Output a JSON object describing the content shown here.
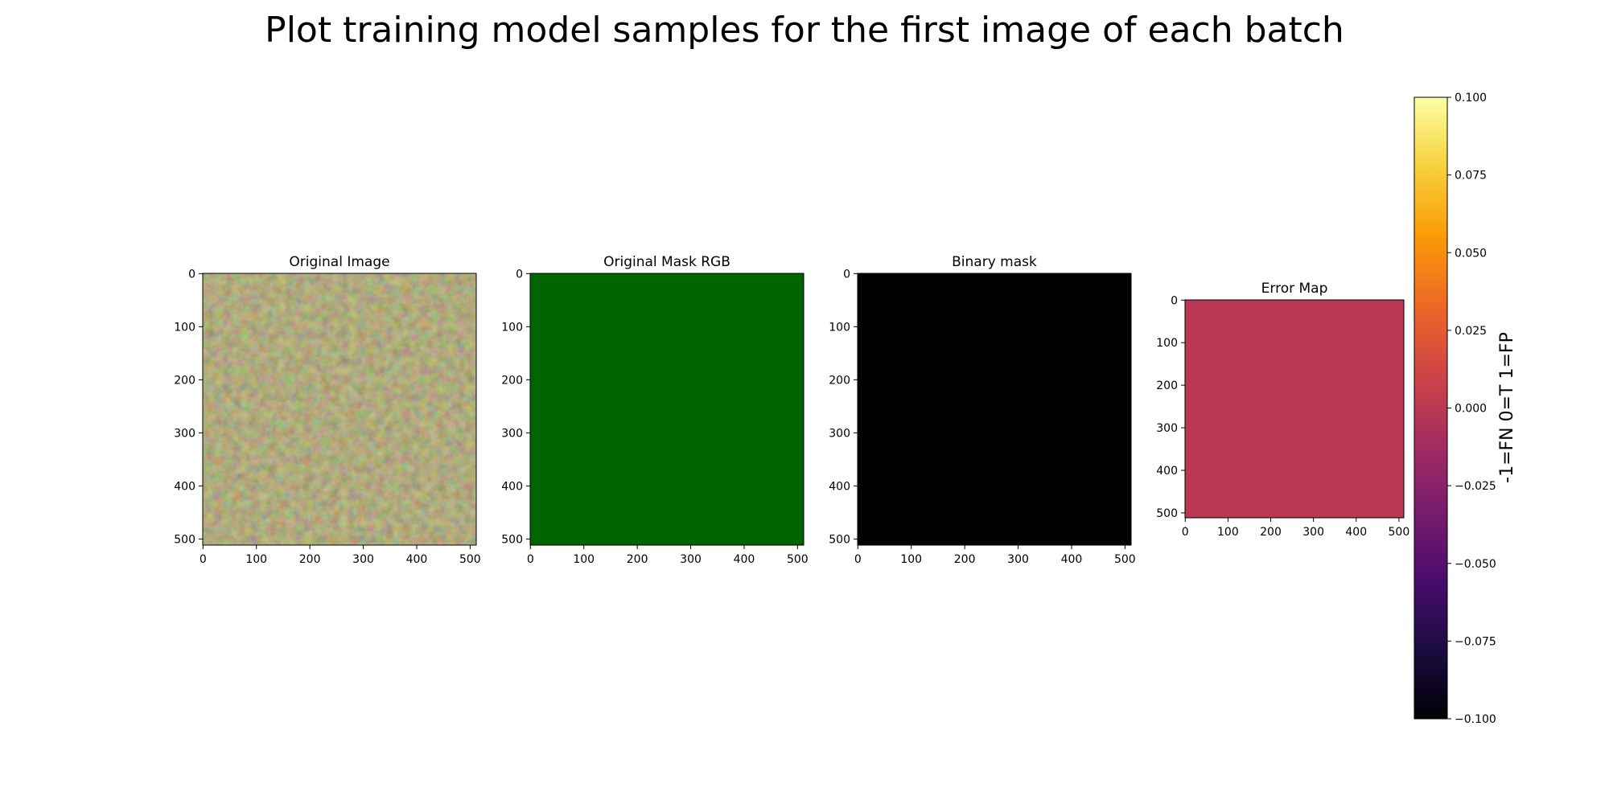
{
  "figure": {
    "title": "Plot training model samples for the first image of each batch"
  },
  "chart_data": [
    {
      "type": "image",
      "title": "Original Image",
      "xticks": [
        "0",
        "100",
        "200",
        "300",
        "400",
        "500"
      ],
      "yticks": [
        "0",
        "100",
        "200",
        "300",
        "400",
        "500"
      ],
      "xlim": [
        0,
        511
      ],
      "ylim": [
        511,
        0
      ],
      "description_color": "#7a6e3c"
    },
    {
      "type": "image",
      "title": "Original Mask RGB",
      "xticks": [
        "0",
        "100",
        "200",
        "300",
        "400",
        "500"
      ],
      "yticks": [
        "0",
        "100",
        "200",
        "300",
        "400",
        "500"
      ],
      "xlim": [
        0,
        511
      ],
      "ylim": [
        511,
        0
      ],
      "fill_color": "#006400"
    },
    {
      "type": "image",
      "title": "Binary mask",
      "xticks": [
        "0",
        "100",
        "200",
        "300",
        "400",
        "500"
      ],
      "yticks": [
        "0",
        "100",
        "200",
        "300",
        "400",
        "500"
      ],
      "xlim": [
        0,
        511
      ],
      "ylim": [
        511,
        0
      ],
      "fill_color": "#000000"
    },
    {
      "type": "heatmap",
      "title": "Error Map",
      "xticks": [
        "0",
        "100",
        "200",
        "300",
        "400",
        "500"
      ],
      "yticks": [
        "0",
        "100",
        "200",
        "300",
        "400",
        "500"
      ],
      "xlim": [
        0,
        511
      ],
      "ylim": [
        511,
        0
      ],
      "value": 0.0,
      "fill_color": "#bc3754",
      "colorbar": {
        "label": "-1=FN 0=T 1=FP",
        "range": [
          -0.1,
          0.1
        ],
        "ticks": [
          "0.100",
          "0.075",
          "0.050",
          "0.025",
          "0.000",
          "−0.025",
          "−0.050",
          "−0.075",
          "−0.100"
        ],
        "colormap": "inferno",
        "colormap_stops": [
          "#000004",
          "#1b0c41",
          "#4a0c6b",
          "#781c6d",
          "#a52c60",
          "#cf4446",
          "#ed6925",
          "#fb9b06",
          "#f7d13d",
          "#fcffa4"
        ]
      }
    }
  ]
}
